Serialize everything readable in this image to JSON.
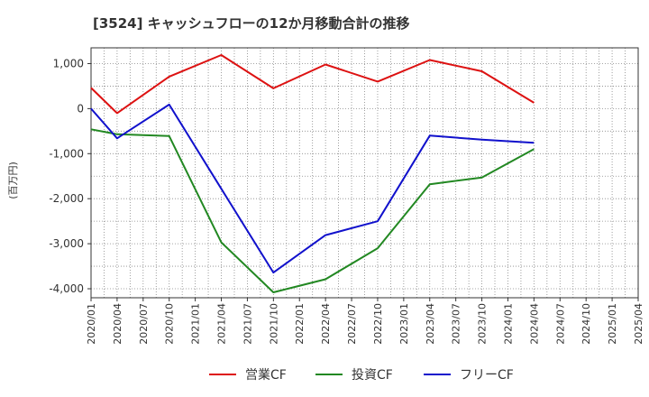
{
  "chart_data": {
    "type": "line",
    "title": "[3524]  キャッシュフローの12か月移動合計の推移",
    "xlabel": "",
    "ylabel": "(百万円)",
    "categories": [
      "2020/01",
      "2020/04",
      "2020/07",
      "2020/10",
      "2021/01",
      "2021/04",
      "2021/07",
      "2021/10",
      "2022/01",
      "2022/04",
      "2022/07",
      "2022/10",
      "2023/01",
      "2023/04",
      "2023/07",
      "2023/10",
      "2024/01",
      "2024/04",
      "2024/07",
      "2024/10",
      "2025/01",
      "2025/04"
    ],
    "ylim": [
      -4200,
      1350
    ],
    "yticks": [
      1000,
      0,
      -1000,
      -2000,
      -3000,
      -4000
    ],
    "ytick_labels": [
      "1,000",
      "0",
      "-1,000",
      "-2,000",
      "-3,000",
      "-4,000"
    ],
    "grid": true,
    "legend_position": "bottom",
    "series": [
      {
        "name": "営業CF",
        "color": "#dd1111",
        "values": [
          460,
          -100,
          null,
          710,
          null,
          1190,
          null,
          450,
          null,
          980,
          null,
          600,
          null,
          1080,
          null,
          830,
          null,
          130,
          null,
          null,
          null,
          null
        ]
      },
      {
        "name": "投資CF",
        "color": "#228822",
        "values": [
          -460,
          -570,
          null,
          -610,
          null,
          -2970,
          null,
          -4080,
          null,
          -3790,
          null,
          -3100,
          null,
          -1680,
          null,
          -1530,
          null,
          -900,
          null,
          null,
          null,
          null
        ]
      },
      {
        "name": "フリーCF",
        "color": "#1111cc",
        "values": [
          0,
          -660,
          null,
          90,
          null,
          -1780,
          null,
          -3640,
          null,
          -2810,
          null,
          -2500,
          null,
          -600,
          null,
          -690,
          null,
          -760,
          null,
          null,
          null,
          null
        ]
      }
    ]
  }
}
